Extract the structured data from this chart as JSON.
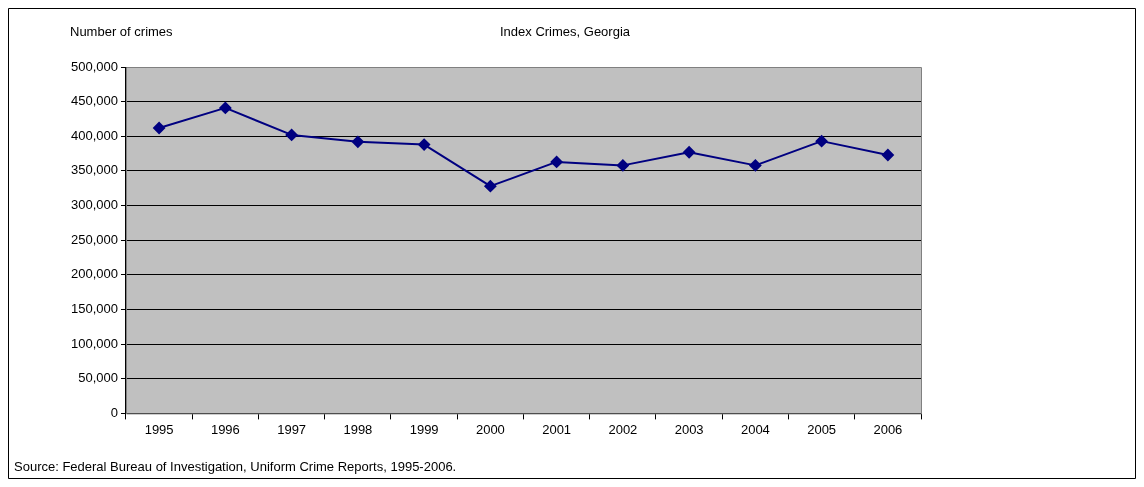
{
  "chart_data": {
    "type": "line",
    "title": "Index Crimes, Georgia",
    "ylabel": "Number of crimes",
    "annotations": [
      "Source: Federal Bureau of Investigation, Uniform Crime Reports, 1995-2006."
    ],
    "categories": [
      "1995",
      "1996",
      "1997",
      "1998",
      "1999",
      "2000",
      "2001",
      "2002",
      "2003",
      "2004",
      "2005",
      "2006"
    ],
    "series": [
      {
        "color": "#000080",
        "values": [
          412000,
          441000,
          402000,
          392000,
          388000,
          328000,
          363000,
          358000,
          377000,
          358000,
          393000,
          373000
        ]
      }
    ],
    "ylim": [
      0,
      500000
    ],
    "yticks": [
      {
        "value": 0,
        "label": "0"
      },
      {
        "value": 50000,
        "label": "50,000"
      },
      {
        "value": 100000,
        "label": "100,000"
      },
      {
        "value": 150000,
        "label": "150,000"
      },
      {
        "value": 200000,
        "label": "200,000"
      },
      {
        "value": 250000,
        "label": "250,000"
      },
      {
        "value": 300000,
        "label": "300,000"
      },
      {
        "value": 350000,
        "label": "350,000"
      },
      {
        "value": 400000,
        "label": "400,000"
      },
      {
        "value": 450000,
        "label": "450,000"
      },
      {
        "value": 500000,
        "label": "500,000"
      }
    ],
    "grid": "y",
    "legend": false,
    "marker": "diamond",
    "line_style": "solid"
  }
}
